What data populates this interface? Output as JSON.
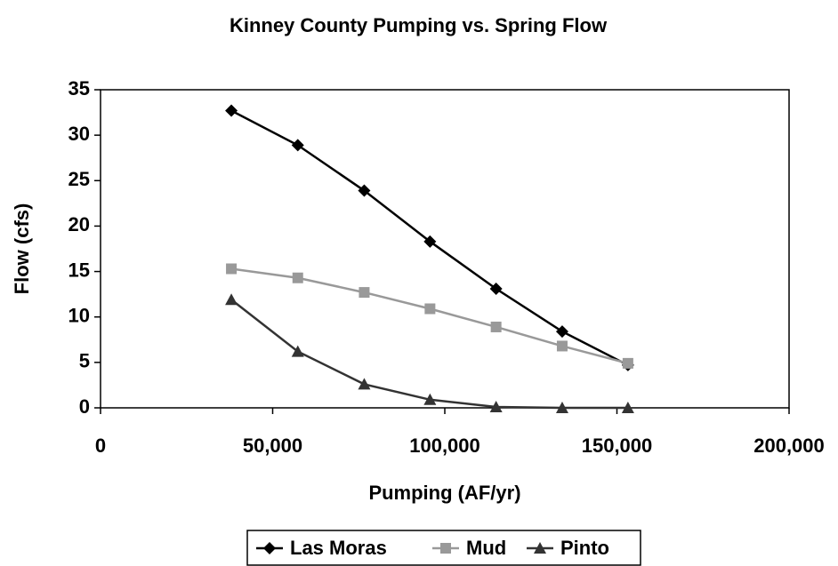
{
  "chart_data": {
    "type": "line",
    "title": "Kinney County Pumping vs. Spring Flow",
    "x_label": "Pumping (AF/yr)",
    "y_label": "Flow (cfs)",
    "x": [
      38000,
      57300,
      76600,
      95700,
      114900,
      134100,
      153200
    ],
    "series": [
      {
        "name": "Las Moras",
        "color": "#000000",
        "marker": "diamond",
        "values": [
          32.7,
          28.9,
          23.9,
          18.3,
          13.1,
          8.4,
          4.7
        ]
      },
      {
        "name": "Mud",
        "color": "#999999",
        "marker": "square",
        "values": [
          15.3,
          14.3,
          12.7,
          10.9,
          8.9,
          6.8,
          4.9
        ]
      },
      {
        "name": "Pinto",
        "color": "#333333",
        "marker": "triangle",
        "values": [
          11.9,
          6.2,
          2.6,
          0.9,
          0.1,
          0,
          0
        ]
      }
    ],
    "xlim": [
      0,
      200000
    ],
    "xticks": [
      0,
      {
        "value": 50000,
        "label": "50,000"
      },
      {
        "value": 100000,
        "label": "100,000"
      },
      {
        "value": 150000,
        "label": "150,000"
      },
      {
        "value": 200000,
        "label": "200,000"
      }
    ],
    "ylim": [
      0,
      35
    ],
    "yticks": [
      0,
      5,
      10,
      15,
      20,
      25,
      30,
      35
    ],
    "grid": false,
    "legend": "bottom"
  }
}
